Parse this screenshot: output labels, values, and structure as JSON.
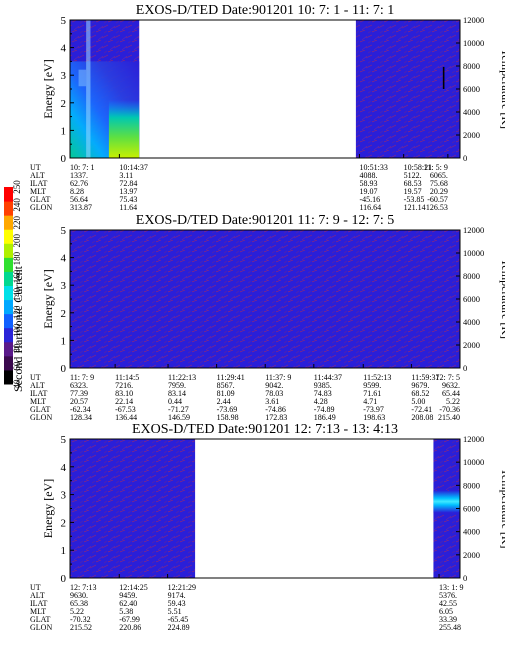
{
  "colors": {
    "background_blue": "#2a1fd8",
    "streak_red": "#b42850",
    "empty": "#ffffff",
    "colorbar": [
      "#000000",
      "#3b0a4e",
      "#5a1a8a",
      "#2a24d8",
      "#1060ff",
      "#00a8ff",
      "#00e0e8",
      "#00d890",
      "#30e030",
      "#b0f000",
      "#ffff00",
      "#ffa800",
      "#ff4000",
      "#ff0000"
    ]
  },
  "colorbar": {
    "label": "Second Harmonic Current",
    "ticks": [
      "40",
      "60",
      "80",
      "100",
      "120",
      "140",
      "160",
      "180",
      "200",
      "220",
      "240",
      "250"
    ]
  },
  "chart_data": [
    {
      "type": "heatmap",
      "title": "EXOS-D/TED   Date:901201  10: 7: 1 - 11: 7: 1",
      "ylabel": "Energy [eV]",
      "y2label": "Temperature [K]",
      "ylim": [
        0,
        5
      ],
      "y2lim": [
        0,
        12000
      ],
      "yticks": [
        "0",
        "1",
        "2",
        "3",
        "4",
        "5"
      ],
      "y2ticks": [
        "0",
        "2000",
        "4000",
        "6000",
        "8000",
        "10000",
        "12000"
      ],
      "x_range": [
        "10:7:1",
        "11:7:1"
      ],
      "data_segments": [
        {
          "from": "10:7:1",
          "to": "10:17:40",
          "content": "gradient"
        },
        {
          "from": "10:51:00",
          "to": "11:7:1",
          "content": "noise"
        }
      ],
      "features": [
        {
          "type": "cold_population",
          "from": "10:7:1",
          "to": "10:17:40",
          "energy_max_ev": 3.5,
          "peak": "yellow-green near 10:13-10:17 below 2 eV"
        },
        {
          "type": "short_trace",
          "at": "11:4:30",
          "energy_ev": [
            2.5,
            3.3
          ]
        }
      ],
      "info_table": {
        "row_labels": [
          "UT",
          "ALT",
          "ILAT",
          "MLT",
          "GLAT",
          "GLON"
        ],
        "columns": [
          {
            "t": "10:7:1",
            "values": [
              "10: 7: 1",
              "1337.",
              "62.76",
              "8.28",
              "56.64",
              "313.87"
            ]
          },
          {
            "t": "10:14:37",
            "values": [
              "10:14:37",
              "3.11",
              "72.84",
              "13.97",
              "75.43",
              "11.64"
            ]
          },
          {
            "t": "10:51:33",
            "values": [
              "10:51:33",
              "4088.",
              "58.93",
              "19.07",
              "-45.16",
              "116.64"
            ]
          },
          {
            "t": "10:58:21",
            "values": [
              "10:58:21",
              "5122.",
              "68.53",
              "19.57",
              "-53.85",
              "121.14"
            ]
          },
          {
            "t": "11:5:9",
            "values": [
              "11: 5: 9",
              "6065.",
              "75.68",
              "20.29",
              "-60.57",
              "126.53"
            ]
          }
        ]
      }
    },
    {
      "type": "heatmap",
      "title": "EXOS-D/TED   Date:901201  11: 7: 9 - 12: 7: 5",
      "ylabel": "Energy [eV]",
      "y2label": "Temperature [K]",
      "ylim": [
        0,
        5
      ],
      "y2lim": [
        0,
        12000
      ],
      "yticks": [
        "0",
        "1",
        "2",
        "3",
        "4",
        "5"
      ],
      "y2ticks": [
        "0",
        "2000",
        "4000",
        "6000",
        "8000",
        "10000",
        "12000"
      ],
      "x_range": [
        "11:7:9",
        "12:7:5"
      ],
      "data_segments": [
        {
          "from": "11:7:9",
          "to": "12:7:5",
          "content": "noise"
        }
      ],
      "info_table": {
        "row_labels": [
          "UT",
          "ALT",
          "ILAT",
          "MLT",
          "GLAT",
          "GLON"
        ],
        "columns": [
          {
            "t": "11:7:9",
            "values": [
              "11: 7: 9",
              "6323.",
              "77.39",
              "20.57",
              "-62.34",
              "128.34"
            ]
          },
          {
            "t": "11:14:5",
            "values": [
              "11:14:5",
              "7216.",
              "83.10",
              "22.14",
              "-67.53",
              "136.44"
            ]
          },
          {
            "t": "11:22:13",
            "values": [
              "11:22:13",
              "7959.",
              "83.14",
              "0.44",
              "-71.27",
              "146.59"
            ]
          },
          {
            "t": "11:29:41",
            "values": [
              "11:29:41",
              "8567.",
              "81.09",
              "2.44",
              "-73.69",
              "158.98"
            ]
          },
          {
            "t": "11:37:9",
            "values": [
              "11:37: 9",
              "9042.",
              "78.03",
              "3.61",
              "-74.86",
              "172.83"
            ]
          },
          {
            "t": "11:44:37",
            "values": [
              "11:44:37",
              "9385.",
              "74.83",
              "4.28",
              "-74.89",
              "186.49"
            ]
          },
          {
            "t": "11:52:13",
            "values": [
              "11:52:13",
              "9599.",
              "71.61",
              "4.71",
              "-73.97",
              "198.63"
            ]
          },
          {
            "t": "11:59:37",
            "values": [
              "11:59:37",
              "9679.",
              "68.52",
              "5.00",
              "-72.41",
              "208.08"
            ]
          },
          {
            "t": "12:7:5",
            "values": [
              "12: 7: 5",
              "9632.",
              "65.44",
              "5.22",
              "-70.36",
              "215.40"
            ]
          }
        ]
      }
    },
    {
      "type": "heatmap",
      "title": "EXOS-D/TED   Date:901201  12: 7:13 - 13: 4:13",
      "ylabel": "Energy [eV]",
      "y2label": "Temperature [K]",
      "ylim": [
        0,
        5
      ],
      "y2lim": [
        0,
        12000
      ],
      "yticks": [
        "0",
        "1",
        "2",
        "3",
        "4",
        "5"
      ],
      "y2ticks": [
        "0",
        "2000",
        "4000",
        "6000",
        "8000",
        "10000",
        "12000"
      ],
      "x_range": [
        "12:7:13",
        "13:4:13"
      ],
      "data_segments": [
        {
          "from": "12:7:13",
          "to": "12:25:30",
          "content": "noise"
        },
        {
          "from": "13:0:20",
          "to": "13:4:13",
          "content": "noise"
        }
      ],
      "features": [
        {
          "type": "band",
          "from": "13:0:20",
          "to": "13:4:13",
          "energy_ev": [
            2.6,
            2.9
          ],
          "color": "cyan"
        }
      ],
      "info_table": {
        "row_labels": [
          "UT",
          "ALT",
          "ILAT",
          "MLT",
          "GLAT",
          "GLON"
        ],
        "columns": [
          {
            "t": "12:7:13",
            "values": [
              "12: 7:13",
              "9630.",
              "65.38",
              "5.22",
              "-70.32",
              "215.52"
            ]
          },
          {
            "t": "12:14:25",
            "values": [
              "12:14:25",
              "9459.",
              "62.40",
              "5.38",
              "-67.99",
              "220.86"
            ]
          },
          {
            "t": "12:21:29",
            "values": [
              "12:21:29",
              "9174.",
              "59.43",
              "5.51",
              "-65.45",
              "224.89"
            ]
          },
          {
            "t": "13:1:9",
            "values": [
              "13: 1: 9",
              "5376.",
              "42.55",
              "6.05",
              "33.39",
              "255.48"
            ]
          }
        ]
      }
    }
  ]
}
